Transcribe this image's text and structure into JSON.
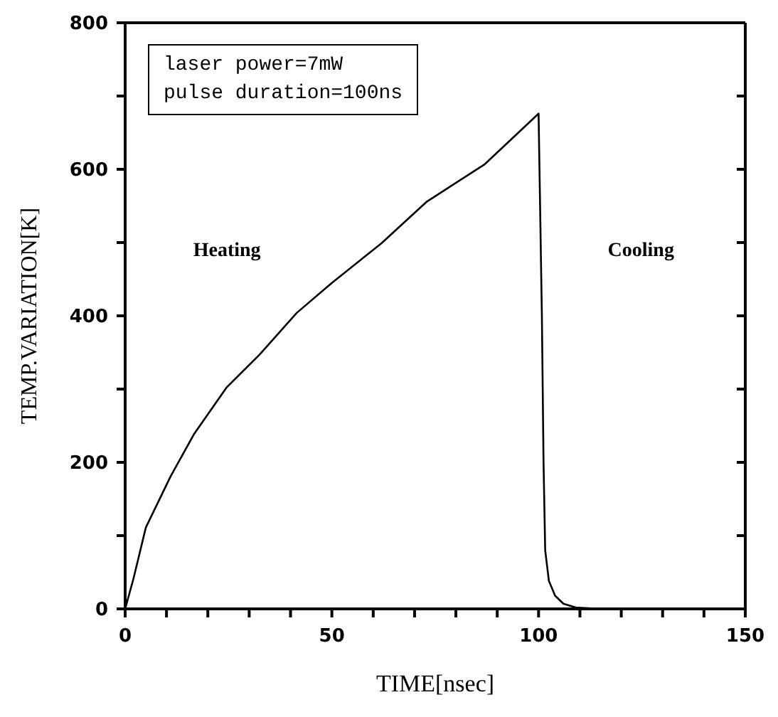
{
  "chart_data": {
    "type": "line",
    "xlabel": "TIME[nsec]",
    "ylabel": "TEMP.VARIATION[K]",
    "annotations": [
      "laser power=7mW",
      "pulse duration=100ns",
      "Heating",
      "Cooling"
    ],
    "series": [
      {
        "color": "#000000",
        "x": [
          0,
          2,
          5,
          11,
          16.6,
          24.5,
          32.5,
          41.5,
          50,
          62,
          73,
          87,
          100,
          100.8,
          101.2,
          101.6,
          102.5,
          104,
          106,
          109,
          115,
          120
        ],
        "values": [
          0,
          41,
          111,
          181,
          238,
          302,
          347,
          404,
          445,
          499,
          556,
          607,
          676,
          400,
          200,
          80,
          38,
          18,
          7,
          2,
          0,
          0
        ]
      }
    ],
    "xlim": [
      0,
      150
    ],
    "ylim": [
      0,
      800
    ],
    "xticks": [
      0,
      {
        "value": 10,
        "label": null
      },
      {
        "value": 20,
        "label": null
      },
      {
        "value": 30,
        "label": null
      },
      {
        "value": 40,
        "label": null
      },
      50,
      {
        "value": 60,
        "label": null
      },
      {
        "value": 70,
        "label": null
      },
      {
        "value": 80,
        "label": null
      },
      {
        "value": 90,
        "label": null
      },
      100,
      {
        "value": 110,
        "label": null
      },
      {
        "value": 120,
        "label": null
      },
      {
        "value": 130,
        "label": null
      },
      {
        "value": 140,
        "label": null
      },
      150
    ],
    "yticks": [
      0,
      {
        "value": 100,
        "label": null
      },
      200,
      {
        "value": 300,
        "label": null
      },
      400,
      {
        "value": 500,
        "label": null
      },
      600,
      {
        "value": 700,
        "label": null
      },
      800
    ],
    "grid": false,
    "legend": false,
    "marker": "none",
    "line_style": "solid"
  }
}
